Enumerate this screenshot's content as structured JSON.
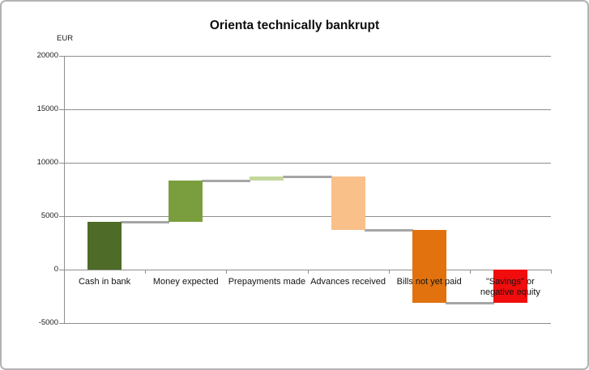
{
  "chart_data": {
    "type": "waterfall",
    "title": "Orienta technically bankrupt",
    "unit_label": "EUR",
    "categories": [
      "Cash in bank",
      "Money expected",
      "Prepayments made",
      "Advances received",
      "Bills not yet paid",
      "\"Savings\" or\nnegative equity"
    ],
    "segments": [
      {
        "category": "Cash in bank",
        "from": 0,
        "to": 4500,
        "delta": 4500,
        "color": "#4e6b28"
      },
      {
        "category": "Money expected",
        "from": 4500,
        "to": 8300,
        "delta": 3800,
        "color": "#7a9e3d"
      },
      {
        "category": "Prepayments made",
        "from": 8300,
        "to": 8700,
        "delta": 400,
        "color": "#c4d79d"
      },
      {
        "category": "Advances received",
        "from": 8700,
        "to": 3700,
        "delta": -5000,
        "color": "#f9c089"
      },
      {
        "category": "Bills not yet paid",
        "from": 3700,
        "to": -3100,
        "delta": -6800,
        "color": "#e1720d"
      },
      {
        "category": "\"Savings\" or negative equity",
        "from": 0,
        "to": -3100,
        "delta": -3100,
        "color": "#f10d0d"
      }
    ],
    "y_ticks": [
      20000,
      15000,
      10000,
      5000,
      0,
      -5000
    ],
    "ylim": [
      -5000,
      20000
    ],
    "grid": true,
    "legend": false,
    "connector_color": "#a6a6a6",
    "gridline_color": "#8e8e8e",
    "axis_color": "#8e8e8e",
    "text_color": "#141414"
  },
  "frame": {
    "background": "#ffffff",
    "border_color": "#b3b3b3"
  }
}
